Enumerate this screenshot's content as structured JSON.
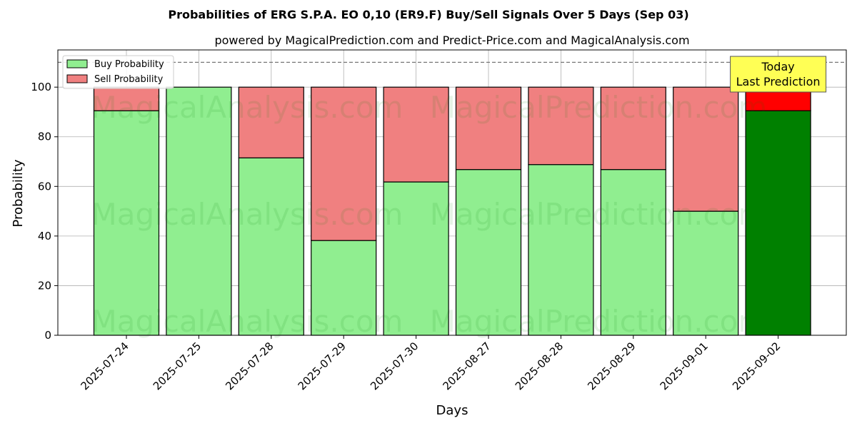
{
  "chart_data": {
    "type": "bar",
    "title": "Probabilities of ERG S.P.A.  EO 0,10 (ER9.F) Buy/Sell Signals Over 5 Days (Sep 03)",
    "subtitle": "powered by MagicalPrediction.com and Predict-Price.com and MagicalAnalysis.com",
    "xlabel": "Days",
    "ylabel": "Probability",
    "ylim": [
      0,
      115
    ],
    "yticks": [
      0,
      20,
      40,
      60,
      80,
      100
    ],
    "categories": [
      "2025-07-24",
      "2025-07-25",
      "2025-07-28",
      "2025-07-29",
      "2025-07-30",
      "2025-08-27",
      "2025-08-28",
      "2025-08-29",
      "2025-09-01",
      "2025-09-02"
    ],
    "series": [
      {
        "name": "Buy Probability",
        "values": [
          90.5,
          100,
          71.5,
          38.2,
          61.8,
          66.8,
          68.8,
          66.8,
          50.0,
          90.5
        ]
      },
      {
        "name": "Sell Probability",
        "values": [
          9.5,
          0,
          28.5,
          61.8,
          38.2,
          33.2,
          31.2,
          33.2,
          50.0,
          9.5
        ]
      }
    ],
    "reference_line": {
      "value": 110,
      "style": "dashed"
    },
    "annotation": {
      "lines": [
        "Today",
        "Last Prediction"
      ],
      "category": "2025-09-02"
    },
    "legend_position": "top-left",
    "grid": true,
    "watermarks": [
      "MagicalAnalysis.com",
      "MagicalPrediction.com"
    ],
    "colors": {
      "buy": "#90ee90",
      "sell": "#f08080",
      "buy_highlight": "#008000",
      "sell_highlight": "#ff0000",
      "annotation_bg": "#ffff55"
    }
  }
}
